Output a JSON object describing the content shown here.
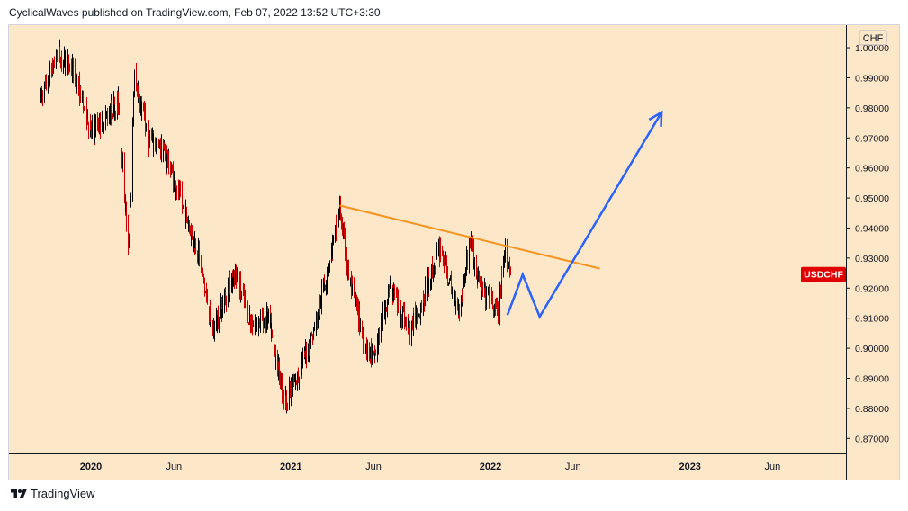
{
  "header": {
    "publisher_text": "CyclicalWaves published on TradingView.com, Feb 07, 2022 13:52 UTC+3:30"
  },
  "footer": {
    "brand": "TradingView"
  },
  "colors": {
    "background": "#fde7c9",
    "candle_up": "#000000",
    "candle_down": "#d10000",
    "trendline": "#f7931e",
    "projection": "#2962ff",
    "symbol_badge": "#e00000",
    "axis_text": "#131722"
  },
  "chart_data": {
    "type": "candlestick",
    "symbol": "USDCHF",
    "currency": "CHF",
    "last_price": 0.9245,
    "ylim": [
      0.865,
      1.0075
    ],
    "y_ticks": [
      "0.87000",
      "0.88000",
      "0.89000",
      "0.90000",
      "0.91000",
      "0.92000",
      "0.93000",
      "0.94000",
      "0.95000",
      "0.96000",
      "0.97000",
      "0.98000",
      "0.99000",
      "1.00000"
    ],
    "x_ticks": [
      "2020",
      "Jun",
      "2021",
      "Jun",
      "2022",
      "Jun",
      "2023",
      "Jun"
    ],
    "x_tick_dates": [
      "2020-01",
      "2020-06",
      "2021-01",
      "2021-06",
      "2022-01",
      "2022-06",
      "2023-01",
      "2023-06"
    ],
    "price_path": [
      {
        "date": "2019-10-01",
        "price": 0.983
      },
      {
        "date": "2019-11-01",
        "price": 0.998
      },
      {
        "date": "2019-12-01",
        "price": 0.992
      },
      {
        "date": "2020-01-01",
        "price": 0.972
      },
      {
        "date": "2020-02-20",
        "price": 0.982
      },
      {
        "date": "2020-03-09",
        "price": 0.932
      },
      {
        "date": "2020-03-20",
        "price": 0.99
      },
      {
        "date": "2020-04-15",
        "price": 0.97
      },
      {
        "date": "2020-05-15",
        "price": 0.965
      },
      {
        "date": "2020-06-15",
        "price": 0.948
      },
      {
        "date": "2020-07-15",
        "price": 0.932
      },
      {
        "date": "2020-08-10",
        "price": 0.905
      },
      {
        "date": "2020-09-20",
        "price": 0.926
      },
      {
        "date": "2020-10-20",
        "price": 0.908
      },
      {
        "date": "2020-11-20",
        "price": 0.91
      },
      {
        "date": "2020-12-20",
        "price": 0.882
      },
      {
        "date": "2021-01-10",
        "price": 0.889
      },
      {
        "date": "2021-02-15",
        "price": 0.908
      },
      {
        "date": "2021-03-31",
        "price": 0.946
      },
      {
        "date": "2021-04-15",
        "price": 0.925
      },
      {
        "date": "2021-05-15",
        "price": 0.902
      },
      {
        "date": "2021-06-01",
        "price": 0.896
      },
      {
        "date": "2021-07-01",
        "price": 0.921
      },
      {
        "date": "2021-08-05",
        "price": 0.906
      },
      {
        "date": "2021-09-01",
        "price": 0.917
      },
      {
        "date": "2021-10-01",
        "price": 0.934
      },
      {
        "date": "2021-10-20",
        "price": 0.92
      },
      {
        "date": "2021-11-05",
        "price": 0.913
      },
      {
        "date": "2021-11-24",
        "price": 0.936
      },
      {
        "date": "2021-12-10",
        "price": 0.921
      },
      {
        "date": "2022-01-14",
        "price": 0.912
      },
      {
        "date": "2022-01-28",
        "price": 0.933
      },
      {
        "date": "2022-02-07",
        "price": 0.9245
      }
    ],
    "trendline": {
      "from": {
        "date": "2021-03-31",
        "price": 0.9475
      },
      "to": {
        "date": "2022-07-20",
        "price": 0.9265
      }
    },
    "projection_path": [
      {
        "date": "2022-02-01",
        "price": 0.911
      },
      {
        "date": "2022-03-01",
        "price": 0.9245
      },
      {
        "date": "2022-04-01",
        "price": 0.9105
      },
      {
        "date": "2022-11-10",
        "price": 0.9785
      }
    ]
  }
}
